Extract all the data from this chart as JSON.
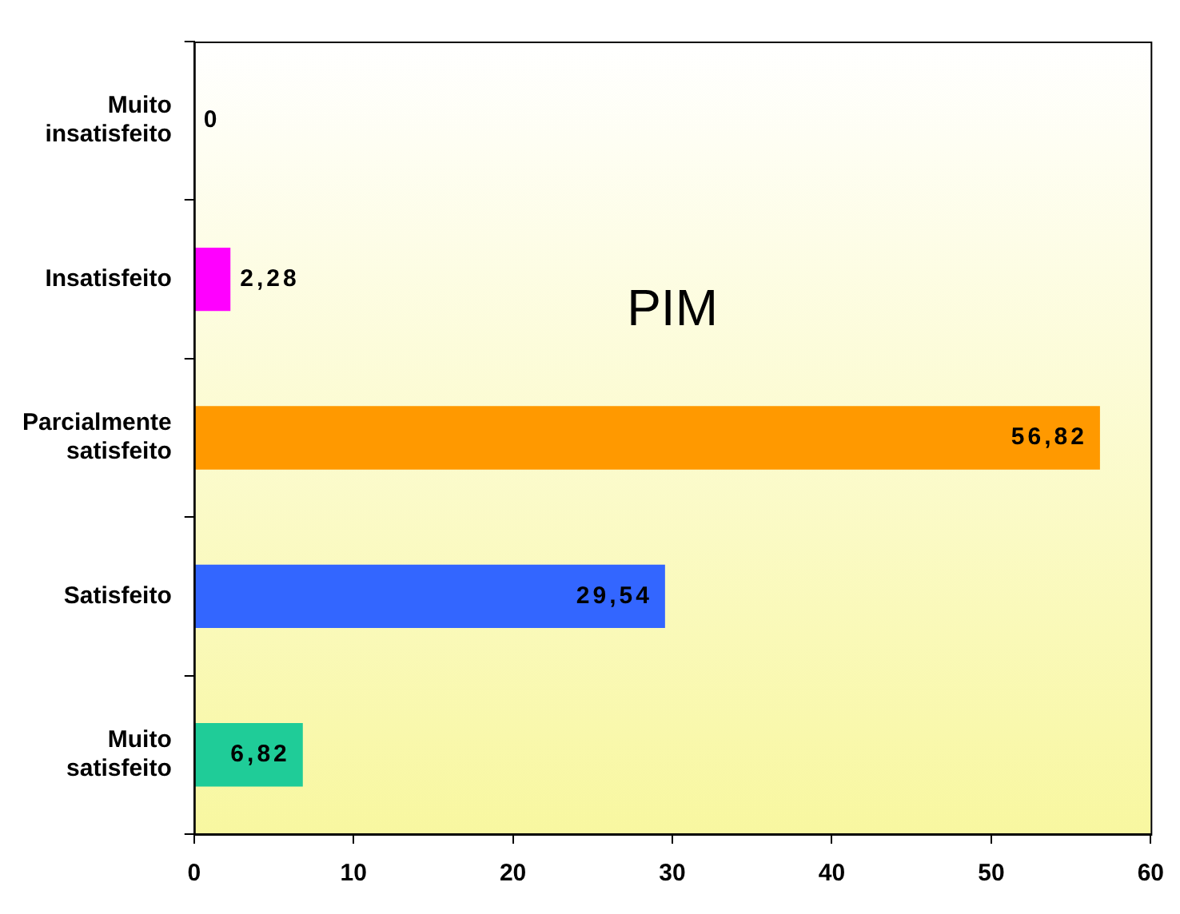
{
  "chart_data": {
    "type": "bar",
    "orientation": "horizontal",
    "categories": [
      "Muito insatisfeito",
      "Insatisfeito",
      "Parcialmente satisfeito",
      "Satisfeito",
      "Muito satisfeito"
    ],
    "values": [
      0,
      2.28,
      56.82,
      29.54,
      6.82
    ],
    "value_labels": [
      "0",
      "2,28",
      "56,82",
      "29,54",
      "6,82"
    ],
    "colors": [
      "#ff00ff",
      "#ff00ff",
      "#ff9900",
      "#3366ff",
      "#1fcc98"
    ],
    "xlim": [
      0,
      60
    ],
    "xticks": [
      0,
      10,
      20,
      30,
      40,
      50,
      60
    ],
    "annotations": [
      "PIM"
    ],
    "grid": false,
    "legend": false
  }
}
